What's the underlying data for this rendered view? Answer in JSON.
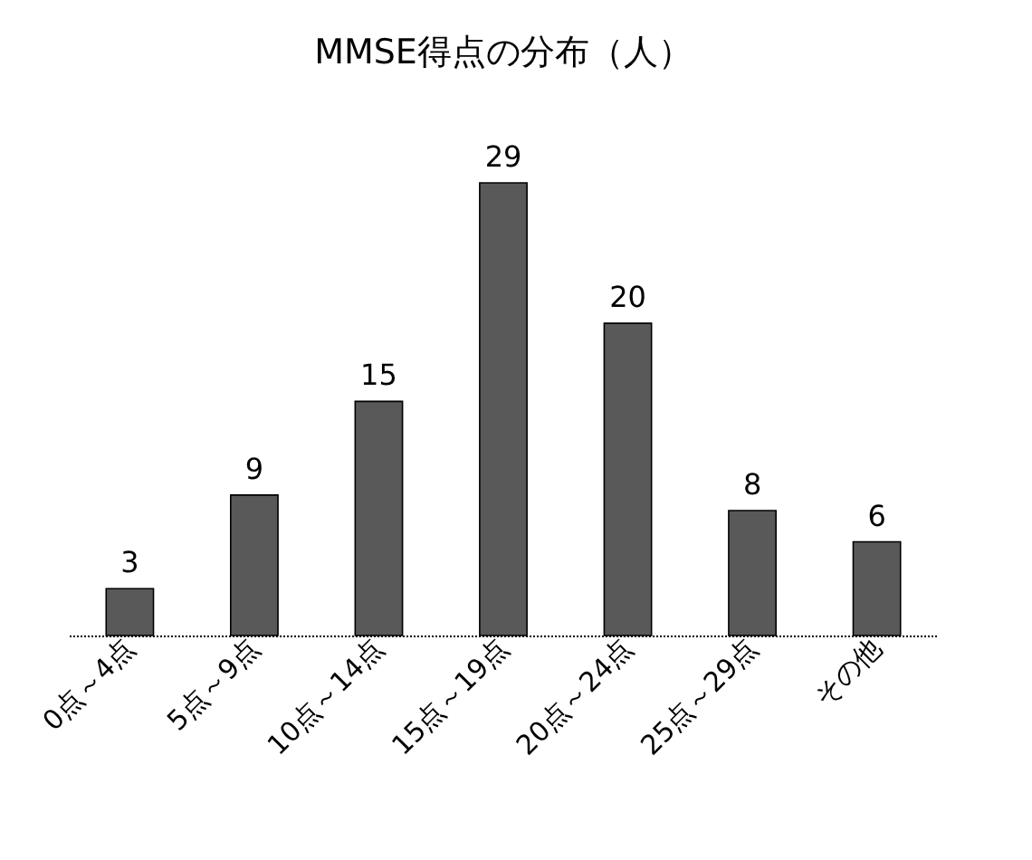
{
  "chart_data": {
    "type": "bar",
    "title": "MMSE得点の分布（人）",
    "categories": [
      "0点～4点",
      "5点～9点",
      "10点～14点",
      "15点～19点",
      "20点～24点",
      "25点～29点",
      "その他"
    ],
    "values": [
      3,
      9,
      15,
      29,
      20,
      8,
      6
    ],
    "color": "#595959",
    "data_labels": true
  }
}
